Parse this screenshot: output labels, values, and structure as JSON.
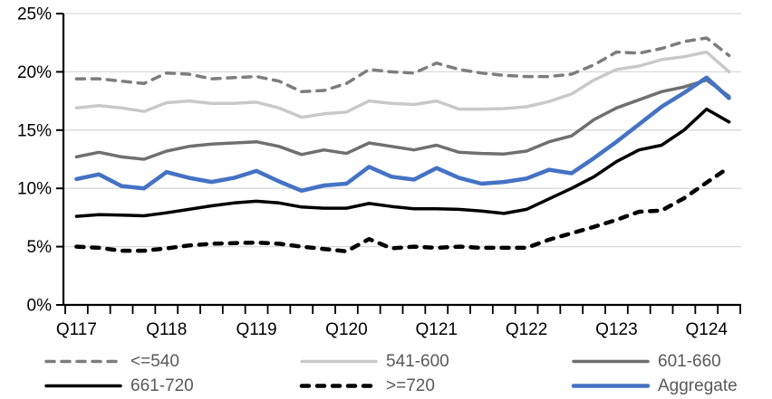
{
  "chart_data": {
    "type": "line",
    "title": "",
    "xlabel": "",
    "ylabel": "",
    "ylim": [
      0,
      25
    ],
    "grid": true,
    "legend_position": "bottom",
    "yticks": [
      0,
      5,
      10,
      15,
      20,
      25
    ],
    "ytick_labels": [
      "0%",
      "5%",
      "10%",
      "15%",
      "20%",
      "25%"
    ],
    "x_tick_labels_visible": [
      "Q117",
      "Q118",
      "Q119",
      "Q120",
      "Q121",
      "Q122",
      "Q123",
      "Q124"
    ],
    "categories": [
      "Q117",
      "Q217",
      "Q317",
      "Q417",
      "Q118",
      "Q218",
      "Q318",
      "Q418",
      "Q119",
      "Q219",
      "Q319",
      "Q419",
      "Q120",
      "Q220",
      "Q320",
      "Q420",
      "Q121",
      "Q221",
      "Q321",
      "Q421",
      "Q122",
      "Q222",
      "Q322",
      "Q422",
      "Q123",
      "Q223",
      "Q323",
      "Q423",
      "Q124",
      "Q224"
    ],
    "series": [
      {
        "name": "<=540",
        "color": "#7d7d7d",
        "dash": "9,8",
        "width": 3.5,
        "values": [
          19.4,
          19.4,
          19.2,
          19.0,
          19.9,
          19.8,
          19.4,
          19.5,
          19.6,
          19.2,
          18.3,
          18.4,
          19.0,
          20.2,
          20.0,
          19.9,
          20.75,
          20.2,
          19.9,
          19.7,
          19.6,
          19.6,
          19.8,
          20.6,
          21.7,
          21.6,
          22.0,
          22.6,
          22.9,
          21.4
        ]
      },
      {
        "name": "541-600",
        "color": "#c9c9c9",
        "dash": null,
        "width": 3.5,
        "values": [
          16.9,
          17.1,
          16.9,
          16.6,
          17.35,
          17.5,
          17.3,
          17.3,
          17.4,
          16.9,
          16.1,
          16.4,
          16.55,
          17.5,
          17.3,
          17.2,
          17.5,
          16.8,
          16.8,
          16.85,
          17.0,
          17.45,
          18.1,
          19.3,
          20.2,
          20.5,
          21.05,
          21.3,
          21.7,
          20.0
        ]
      },
      {
        "name": "601-660",
        "color": "#6f6f6f",
        "dash": null,
        "width": 3.5,
        "values": [
          12.7,
          13.1,
          12.7,
          12.5,
          13.2,
          13.6,
          13.8,
          13.9,
          14.0,
          13.6,
          12.9,
          13.3,
          13.0,
          13.9,
          13.6,
          13.3,
          13.7,
          13.1,
          13.0,
          12.95,
          13.2,
          14.0,
          14.5,
          15.9,
          16.9,
          17.6,
          18.3,
          18.7,
          19.3,
          17.9
        ]
      },
      {
        "name": "661-720",
        "color": "#000000",
        "dash": null,
        "width": 3.5,
        "values": [
          7.6,
          7.75,
          7.7,
          7.65,
          7.9,
          8.2,
          8.5,
          8.75,
          8.9,
          8.75,
          8.4,
          8.3,
          8.3,
          8.7,
          8.45,
          8.25,
          8.25,
          8.2,
          8.05,
          7.85,
          8.2,
          9.1,
          10.0,
          11.0,
          12.3,
          13.3,
          13.7,
          15.0,
          16.8,
          15.7
        ]
      },
      {
        "name": ">=720",
        "color": "#000000",
        "dash": "8,9",
        "width": 4.5,
        "values": [
          5.0,
          4.9,
          4.65,
          4.65,
          4.85,
          5.1,
          5.25,
          5.3,
          5.35,
          5.25,
          5.0,
          4.8,
          4.6,
          5.65,
          4.85,
          5.0,
          4.9,
          5.0,
          4.9,
          4.9,
          4.9,
          5.6,
          6.15,
          6.7,
          7.3,
          8.0,
          8.1,
          9.15,
          10.5,
          11.8
        ]
      },
      {
        "name": "Aggregate",
        "color": "#4472c4",
        "dash": null,
        "width": 4.5,
        "values": [
          10.8,
          11.2,
          10.2,
          10.0,
          11.4,
          10.9,
          10.55,
          10.9,
          11.5,
          10.6,
          9.8,
          10.25,
          10.4,
          11.85,
          11.0,
          10.75,
          11.75,
          10.9,
          10.4,
          10.55,
          10.85,
          11.6,
          11.3,
          12.6,
          14.0,
          15.5,
          17.0,
          18.2,
          19.5,
          17.75
        ]
      }
    ]
  },
  "colors": {
    "background": "#ffffff",
    "grid": "#d9d9d9",
    "axis": "#000000",
    "axis_text": "#000000",
    "legend_text": "#595959"
  }
}
